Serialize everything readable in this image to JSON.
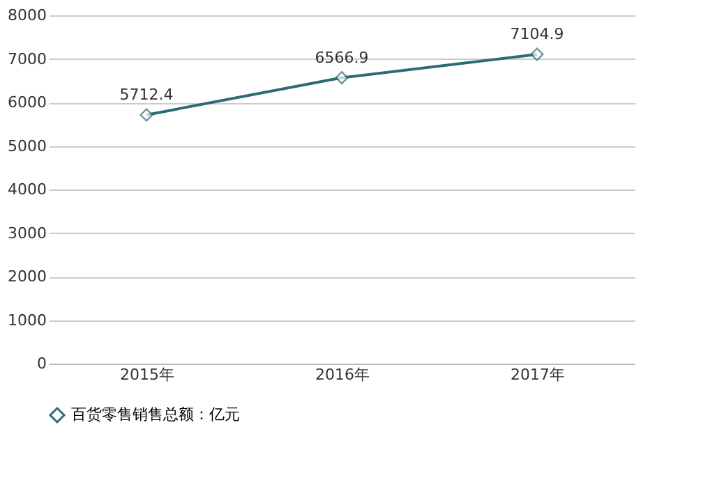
{
  "chart_data": {
    "type": "line",
    "categories": [
      "2015年",
      "2016年",
      "2017年"
    ],
    "series": [
      {
        "name": "百货零售销售总额：亿元",
        "color": "#2e6a78",
        "values": [
          5712.4,
          6566.9,
          7104.9
        ]
      }
    ],
    "ylim": [
      0,
      8000
    ],
    "yticks": [
      0,
      1000,
      2000,
      3000,
      4000,
      5000,
      6000,
      7000,
      8000
    ],
    "grid": "y",
    "legend": "bottom",
    "marker": "diamond",
    "line_style": "solid",
    "data_labels": true
  }
}
